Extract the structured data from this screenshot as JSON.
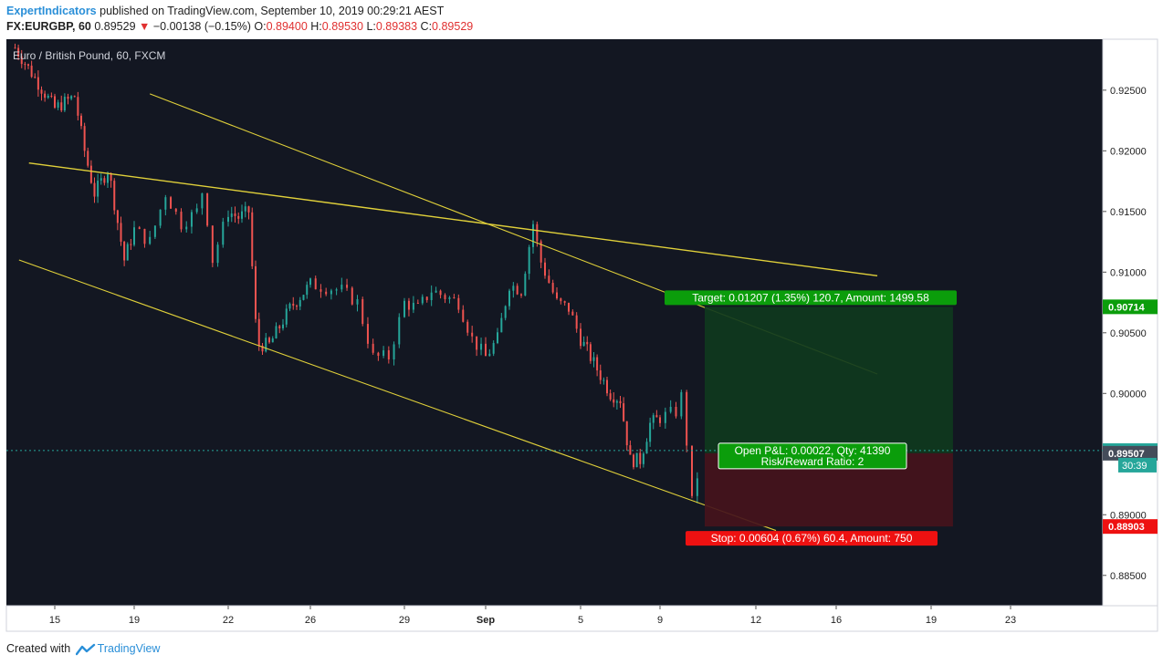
{
  "header": {
    "author": "ExpertIndicators",
    "published_text": "published on TradingView.com, September 10, 2019 00:29:21 AEST",
    "symbol_interval": "FX:EURGBP, 60",
    "last_price": "0.89529",
    "change": "−0.00138 (−0.15%)",
    "ohlc": [
      {
        "label": "O:",
        "value": "0.89400"
      },
      {
        "label": "H:",
        "value": "0.89530"
      },
      {
        "label": "L:",
        "value": "0.89383"
      },
      {
        "label": "C:",
        "value": "0.89529"
      }
    ]
  },
  "footer": {
    "created_with": "Created with",
    "brand": "TradingView"
  },
  "colors": {
    "background": "#131722",
    "up_candle": "#26a69a",
    "down_candle": "#ef5350",
    "trendline": "#e0d03a",
    "target_zone": "#0f3a1e",
    "stop_zone": "#45141c",
    "target_label": "#0b9d0b",
    "stop_label": "#ee1111",
    "price_line": "#26a69a"
  },
  "chart_data": {
    "type": "candlestick",
    "title": "Euro / British Pound, 60, FXCM",
    "x_axis": {
      "tick_labels": [
        "15",
        "19",
        "22",
        "26",
        "29",
        "Sep",
        "5",
        "9",
        "12",
        "16",
        "19",
        "23"
      ]
    },
    "y_axis": {
      "range": [
        0.8825,
        0.9292
      ],
      "tick_values": [
        0.925,
        0.92,
        0.915,
        0.91,
        0.905,
        0.9,
        0.895,
        0.89,
        0.885
      ],
      "tick_labels": [
        "0.92500",
        "0.92000",
        "0.91500",
        "0.91000",
        "0.90500",
        "0.90000",
        "0.89500",
        "0.89000",
        "0.88500"
      ]
    },
    "price_path": [
      [
        "13",
        0.9285
      ],
      [
        "14",
        0.926
      ],
      [
        "15",
        0.9235
      ],
      [
        "16",
        0.9245
      ],
      [
        "16.5",
        0.92
      ],
      [
        "17",
        0.9165
      ],
      [
        "17.7",
        0.9185
      ],
      [
        "18.5",
        0.911
      ],
      [
        "19",
        0.9135
      ],
      [
        "19.5",
        0.9125
      ],
      [
        "20",
        0.9165
      ],
      [
        "20.5",
        0.914
      ],
      [
        "21",
        0.915
      ],
      [
        "21.2",
        0.917
      ],
      [
        "21.5",
        0.911
      ],
      [
        "22",
        0.915
      ],
      [
        "22.5",
        0.9145
      ],
      [
        "23",
        0.915
      ],
      [
        "23.4",
        0.904
      ],
      [
        "24",
        0.904
      ],
      [
        "25",
        0.907
      ],
      [
        "26",
        0.909
      ],
      [
        "27",
        0.9085
      ],
      [
        "27.5",
        0.9075
      ],
      [
        "28",
        0.903
      ],
      [
        "28.5",
        0.903
      ],
      [
        "29",
        0.9075
      ],
      [
        "29.5",
        0.907
      ],
      [
        "30",
        0.9085
      ],
      [
        "31",
        0.9075
      ],
      [
        "31.5",
        0.9045
      ],
      [
        "32",
        0.903
      ],
      [
        "32.5",
        0.9045
      ],
      [
        "33",
        0.909
      ],
      [
        "33.5",
        0.9085
      ],
      [
        "34",
        0.914
      ],
      [
        "34.3",
        0.911
      ],
      [
        "35",
        0.9075
      ],
      [
        "35.5",
        0.907
      ],
      [
        "36",
        0.9045
      ],
      [
        "36.5",
        0.903
      ],
      [
        "37",
        0.9015
      ],
      [
        "37.5",
        0.9
      ],
      [
        "38",
        0.8995
      ],
      [
        "38.5",
        0.8945
      ],
      [
        "39",
        0.8945
      ],
      [
        "39.5",
        0.8975
      ],
      [
        "40",
        0.898
      ],
      [
        "40.5",
        0.8985
      ],
      [
        "40.7",
        0.9
      ],
      [
        "41",
        0.891
      ],
      [
        "41.3",
        0.895
      ]
    ],
    "trend_lines": [
      {
        "from": [
          "13.7",
          0.919
        ],
        "to": [
          "48.3",
          0.9097
        ]
      },
      {
        "from": [
          "19.5",
          0.9247
        ],
        "to": [
          "48.3",
          0.9016
        ]
      },
      {
        "from": [
          "13.2",
          0.911
        ],
        "to": [
          "44",
          0.8887
        ]
      }
    ],
    "position": {
      "entry": 0.89507,
      "target": 0.90714,
      "stop": 0.88903,
      "current": 0.89529,
      "target_label": "Target: 0.01207 (1.35%) 120.7, Amount: 1499.58",
      "stop_label": "Stop: 0.00604 (0.67%) 60.4, Amount: 750",
      "open_pl_label": "Open P&L: 0.00022, Qty: 41390",
      "risk_reward_label": "Risk/Reward Ratio: 2"
    },
    "price_markers": [
      {
        "value": 0.90714,
        "label": "0.90714",
        "color": "#0b9d0b"
      },
      {
        "value": 0.89529,
        "label": "0.89529",
        "color": "#26a69a"
      },
      {
        "value": 0.89507,
        "label": "0.89507",
        "color": "#444c5a"
      },
      {
        "value": 0.88903,
        "label": "0.88903",
        "color": "#ee1111"
      }
    ],
    "countdown": "30:39"
  }
}
